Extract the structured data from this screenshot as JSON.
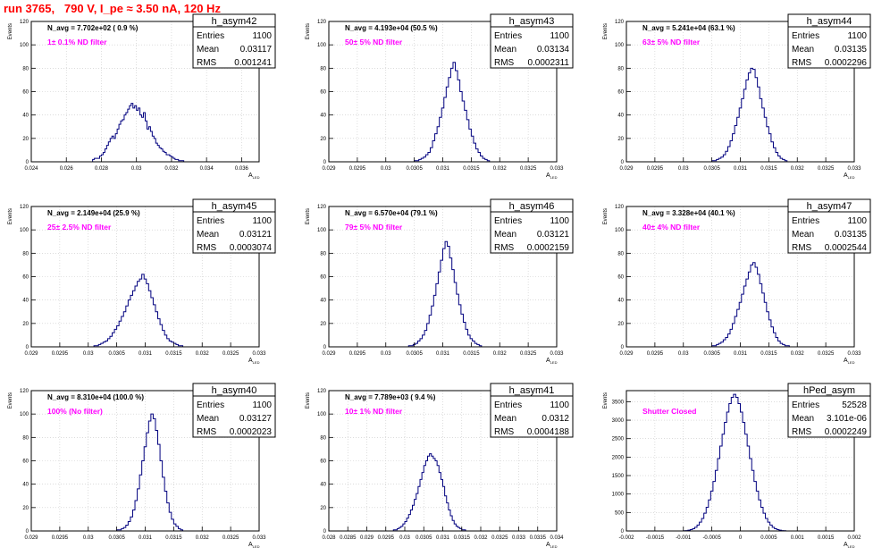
{
  "page": {
    "run_title": "run 3765,   790 V, I_pe ≈ 3.50 nA, 120 Hz"
  },
  "colors": {
    "hist_line": "#00007f",
    "annotation": "#ff00ff",
    "title_text": "#ff0000",
    "axes": "#000000",
    "grid": "#c8c8c8"
  },
  "stats_labels": {
    "entries": "Entries",
    "mean": "Mean",
    "rms": "RMS"
  },
  "ylabel": "Events",
  "xlabel_main": "A",
  "xlabel_sub": "LED",
  "chart_data": [
    {
      "type": "bar",
      "name": "h_asym42",
      "navg_text": "N_avg = 7.702e+02 ( 0.9 %)",
      "annotation": "1± 0.1% ND filter",
      "stats": {
        "entries": "1100",
        "mean": "0.03117",
        "rms": "0.001241"
      },
      "xlim": [
        0.024,
        0.037
      ],
      "ylim": [
        0,
        120
      ],
      "xticks": [
        0.024,
        0.026,
        0.028,
        0.03,
        0.032,
        0.034,
        0.036
      ],
      "xtick_labels": [
        "0.024",
        "0.026",
        "0.028",
        "0.03",
        "0.032",
        "0.034",
        "0.036"
      ],
      "yticks": [
        0,
        20,
        40,
        60,
        80,
        100,
        120
      ],
      "ytick_labels": [
        "0",
        "20",
        "40",
        "60",
        "80",
        "100",
        "120"
      ],
      "bins": {
        "x0": 0.0275,
        "width": 0.0001,
        "values": [
          2,
          3,
          3,
          3,
          5,
          6,
          8,
          11,
          14,
          17,
          20,
          22,
          20,
          24,
          28,
          32,
          35,
          36,
          40,
          42,
          45,
          48,
          50,
          46,
          48,
          44,
          46,
          40,
          38,
          42,
          35,
          28,
          30,
          26,
          22,
          20,
          16,
          14,
          12,
          11,
          9,
          8,
          6,
          6,
          5,
          4,
          3,
          2,
          2,
          1,
          1,
          1
        ]
      }
    },
    {
      "type": "bar",
      "name": "h_asym43",
      "navg_text": "N_avg = 4.193e+04 (50.5 %)",
      "annotation": "50± 5% ND filter",
      "stats": {
        "entries": "1100",
        "mean": "0.03134",
        "rms": "0.0002311"
      },
      "xlim": [
        0.029,
        0.033
      ],
      "ylim": [
        0,
        120
      ],
      "xticks": [
        0.029,
        0.0295,
        0.03,
        0.0305,
        0.031,
        0.0315,
        0.032,
        0.0325,
        0.033
      ],
      "xtick_labels": [
        "0.029",
        "0.0295",
        "0.03",
        "0.0305",
        "0.031",
        "0.0315",
        "0.032",
        "0.0325",
        "0.033"
      ],
      "yticks": [
        0,
        20,
        40,
        60,
        80,
        100,
        120
      ],
      "ytick_labels": [
        "0",
        "20",
        "40",
        "60",
        "80",
        "100",
        "120"
      ],
      "bins": {
        "x0": 0.0305,
        "width": 4e-05,
        "values": [
          1,
          1,
          2,
          3,
          4,
          6,
          8,
          12,
          18,
          24,
          30,
          38,
          46,
          55,
          64,
          72,
          80,
          85,
          78,
          70,
          60,
          52,
          44,
          36,
          28,
          22,
          16,
          11,
          8,
          5,
          3,
          2,
          1
        ]
      }
    },
    {
      "type": "bar",
      "name": "h_asym44",
      "navg_text": "N_avg = 5.241e+04 (63.1 %)",
      "annotation": "63± 5% ND filter",
      "stats": {
        "entries": "1100",
        "mean": "0.03135",
        "rms": "0.0002296"
      },
      "xlim": [
        0.029,
        0.033
      ],
      "ylim": [
        0,
        120
      ],
      "xticks": [
        0.029,
        0.0295,
        0.03,
        0.0305,
        0.031,
        0.0315,
        0.032,
        0.0325,
        0.033
      ],
      "xtick_labels": [
        "0.029",
        "0.0295",
        "0.03",
        "0.0305",
        "0.031",
        "0.0315",
        "0.032",
        "0.0325",
        "0.033"
      ],
      "yticks": [
        0,
        20,
        40,
        60,
        80,
        100,
        120
      ],
      "ytick_labels": [
        "0",
        "20",
        "40",
        "60",
        "80",
        "100",
        "120"
      ],
      "bins": {
        "x0": 0.0305,
        "width": 4e-05,
        "values": [
          1,
          1,
          2,
          3,
          4,
          6,
          9,
          13,
          18,
          24,
          31,
          38,
          46,
          54,
          62,
          70,
          76,
          80,
          79,
          72,
          64,
          54,
          46,
          38,
          30,
          24,
          17,
          12,
          8,
          5,
          3,
          2,
          1
        ]
      }
    },
    {
      "type": "bar",
      "name": "h_asym45",
      "navg_text": "N_avg = 2.149e+04 (25.9 %)",
      "annotation": "25± 2.5% ND filter",
      "stats": {
        "entries": "1100",
        "mean": "0.03121",
        "rms": "0.0003074"
      },
      "xlim": [
        0.029,
        0.033
      ],
      "ylim": [
        0,
        120
      ],
      "xticks": [
        0.029,
        0.0295,
        0.03,
        0.0305,
        0.031,
        0.0315,
        0.032,
        0.0325,
        0.033
      ],
      "xtick_labels": [
        "0.029",
        "0.0295",
        "0.03",
        "0.0305",
        "0.031",
        "0.0315",
        "0.032",
        "0.0325",
        "0.033"
      ],
      "yticks": [
        0,
        20,
        40,
        60,
        80,
        100,
        120
      ],
      "ytick_labels": [
        "0",
        "20",
        "40",
        "60",
        "80",
        "100",
        "120"
      ],
      "bins": {
        "x0": 0.0301,
        "width": 4e-05,
        "values": [
          1,
          1,
          2,
          3,
          4,
          5,
          7,
          9,
          12,
          15,
          18,
          22,
          26,
          30,
          35,
          40,
          44,
          48,
          52,
          56,
          58,
          62,
          58,
          54,
          48,
          42,
          36,
          30,
          24,
          19,
          14,
          10,
          7,
          5,
          4,
          3,
          2,
          1,
          1
        ]
      }
    },
    {
      "type": "bar",
      "name": "h_asym46",
      "navg_text": "N_avg = 6.570e+04 (79.1 %)",
      "annotation": "79± 5% ND filter",
      "stats": {
        "entries": "1100",
        "mean": "0.03121",
        "rms": "0.0002159"
      },
      "xlim": [
        0.029,
        0.033
      ],
      "ylim": [
        0,
        120
      ],
      "xticks": [
        0.029,
        0.0295,
        0.03,
        0.0305,
        0.031,
        0.0315,
        0.032,
        0.0325,
        0.033
      ],
      "xtick_labels": [
        "0.029",
        "0.0295",
        "0.03",
        "0.0305",
        "0.031",
        "0.0315",
        "0.032",
        "0.0325",
        "0.033"
      ],
      "yticks": [
        0,
        20,
        40,
        60,
        80,
        100,
        120
      ],
      "ytick_labels": [
        "0",
        "20",
        "40",
        "60",
        "80",
        "100",
        "120"
      ],
      "bins": {
        "x0": 0.0304,
        "width": 4e-05,
        "values": [
          1,
          1,
          2,
          3,
          5,
          7,
          10,
          14,
          20,
          27,
          35,
          44,
          54,
          64,
          74,
          84,
          90,
          86,
          76,
          66,
          55,
          45,
          36,
          28,
          21,
          15,
          10,
          7,
          5,
          3,
          2,
          1
        ]
      }
    },
    {
      "type": "bar",
      "name": "h_asym47",
      "navg_text": "N_avg = 3.328e+04 (40.1 %)",
      "annotation": "40± 4% ND filter",
      "stats": {
        "entries": "1100",
        "mean": "0.03135",
        "rms": "0.0002544"
      },
      "xlim": [
        0.029,
        0.033
      ],
      "ylim": [
        0,
        120
      ],
      "xticks": [
        0.029,
        0.0295,
        0.03,
        0.0305,
        0.031,
        0.0315,
        0.032,
        0.0325,
        0.033
      ],
      "xtick_labels": [
        "0.029",
        "0.0295",
        "0.03",
        "0.0305",
        "0.031",
        "0.0315",
        "0.032",
        "0.0325",
        "0.033"
      ],
      "yticks": [
        0,
        20,
        40,
        60,
        80,
        100,
        120
      ],
      "ytick_labels": [
        "0",
        "20",
        "40",
        "60",
        "80",
        "100",
        "120"
      ],
      "bins": {
        "x0": 0.0305,
        "width": 4e-05,
        "values": [
          1,
          1,
          2,
          3,
          4,
          6,
          8,
          11,
          15,
          20,
          26,
          32,
          38,
          45,
          52,
          58,
          64,
          70,
          72,
          68,
          62,
          54,
          46,
          38,
          30,
          23,
          17,
          12,
          8,
          5,
          3,
          2,
          1,
          1
        ]
      }
    },
    {
      "type": "bar",
      "name": "h_asym40",
      "navg_text": "N_avg = 8.310e+04 (100.0 %)",
      "annotation": "100% (No filter)",
      "stats": {
        "entries": "1100",
        "mean": "0.03127",
        "rms": "0.0002023"
      },
      "xlim": [
        0.029,
        0.033
      ],
      "ylim": [
        0,
        120
      ],
      "xticks": [
        0.029,
        0.0295,
        0.03,
        0.0305,
        0.031,
        0.0315,
        0.032,
        0.0325,
        0.033
      ],
      "xtick_labels": [
        "0.029",
        "0.0295",
        "0.03",
        "0.0305",
        "0.031",
        "0.0315",
        "0.032",
        "0.0325",
        "0.033"
      ],
      "yticks": [
        0,
        20,
        40,
        60,
        80,
        100,
        120
      ],
      "ytick_labels": [
        "0",
        "20",
        "40",
        "60",
        "80",
        "100",
        "120"
      ],
      "bins": {
        "x0": 0.0305,
        "width": 4e-05,
        "values": [
          1,
          1,
          2,
          3,
          5,
          8,
          12,
          18,
          26,
          36,
          48,
          60,
          72,
          84,
          94,
          100,
          96,
          86,
          74,
          60,
          46,
          34,
          24,
          16,
          10,
          6,
          4,
          2,
          1
        ]
      }
    },
    {
      "type": "bar",
      "name": "h_asym41",
      "navg_text": "N_avg = 7.789e+03 ( 9.4 %)",
      "annotation": "10± 1% ND filter",
      "stats": {
        "entries": "1100",
        "mean": "0.0312",
        "rms": "0.0004188"
      },
      "xlim": [
        0.028,
        0.034
      ],
      "ylim": [
        0,
        120
      ],
      "xticks": [
        0.028,
        0.0285,
        0.029,
        0.0295,
        0.03,
        0.0305,
        0.031,
        0.0315,
        0.032,
        0.0325,
        0.033,
        0.0335,
        0.034
      ],
      "xtick_labels": [
        "0.028",
        "0.0285",
        "0.029",
        "0.0295",
        "0.03",
        "0.0305",
        "0.031",
        "0.0315",
        "0.032",
        "0.0325",
        "0.033",
        "0.0335",
        "0.034"
      ],
      "yticks": [
        0,
        20,
        40,
        60,
        80,
        100,
        120
      ],
      "ytick_labels": [
        "0",
        "20",
        "40",
        "60",
        "80",
        "100",
        "120"
      ],
      "bins": {
        "x0": 0.0297,
        "width": 5e-05,
        "values": [
          1,
          1,
          2,
          3,
          4,
          6,
          8,
          11,
          14,
          18,
          22,
          27,
          32,
          38,
          44,
          50,
          56,
          60,
          64,
          66,
          64,
          62,
          60,
          56,
          50,
          44,
          38,
          30,
          24,
          18,
          13,
          9,
          6,
          4,
          3,
          2,
          1,
          1
        ]
      }
    },
    {
      "type": "bar",
      "name": "hPed_asym",
      "navg_text": "",
      "annotation": "Shutter Closed",
      "stats": {
        "entries": "52528",
        "mean": "3.101e-06",
        "rms": "0.0002249"
      },
      "xlim": [
        -0.002,
        0.002
      ],
      "ylim": [
        0,
        3800
      ],
      "xticks": [
        -0.002,
        -0.0015,
        -0.001,
        -0.0005,
        0,
        0.0005,
        0.001,
        0.0015,
        0.002
      ],
      "xtick_labels": [
        "-0.002",
        "-0.0015",
        "-0.001",
        "-0.0005",
        "0",
        "0.0005",
        "0.001",
        "0.0015",
        "0.002"
      ],
      "yticks": [
        0,
        500,
        1000,
        1500,
        2000,
        2500,
        3000,
        3500
      ],
      "ytick_labels": [
        "0",
        "500",
        "1000",
        "1500",
        "2000",
        "2500",
        "3000",
        "3500"
      ],
      "bins": {
        "x0": -0.001,
        "width": 4e-05,
        "values": [
          5,
          10,
          20,
          35,
          60,
          100,
          160,
          240,
          340,
          480,
          640,
          840,
          1080,
          1340,
          1640,
          1960,
          2300,
          2620,
          2940,
          3220,
          3450,
          3620,
          3700,
          3620,
          3450,
          3220,
          2940,
          2620,
          2300,
          1960,
          1640,
          1340,
          1080,
          840,
          640,
          480,
          340,
          240,
          160,
          100,
          60,
          35,
          20,
          10,
          5
        ]
      }
    }
  ]
}
